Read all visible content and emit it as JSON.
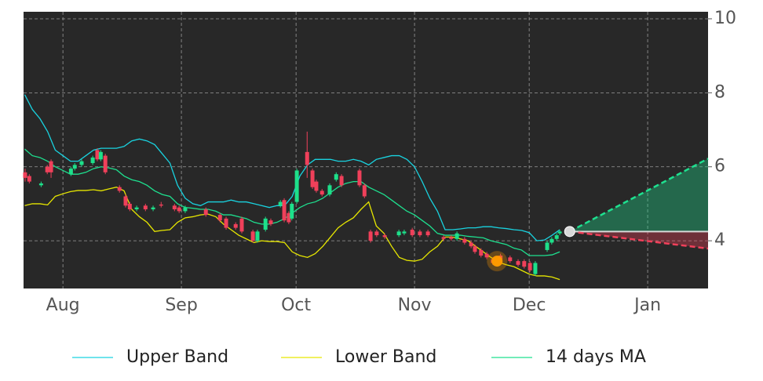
{
  "chart_data": {
    "type": "candlestick",
    "xlim": [
      -10.3,
      168.8
    ],
    "ylim": [
      2.71,
      10.19
    ],
    "xticks": [
      {
        "value": 0,
        "label": "Aug"
      },
      {
        "value": 31,
        "label": "Sep"
      },
      {
        "value": 61,
        "label": "Oct"
      },
      {
        "value": 92,
        "label": "Nov"
      },
      {
        "value": 122,
        "label": "Dec"
      },
      {
        "value": 153,
        "label": "Jan"
      }
    ],
    "yticks": [
      4,
      6,
      8,
      10
    ],
    "grid": true,
    "x": [
      -10,
      -8,
      -6,
      -4,
      -2,
      0,
      2,
      4,
      6,
      8,
      10,
      12,
      14,
      16,
      18,
      20,
      22,
      24,
      26,
      28,
      30,
      32,
      34,
      36,
      38,
      40,
      42,
      44,
      46,
      48,
      50,
      52,
      54,
      56,
      58,
      60,
      62,
      64,
      66,
      68,
      70,
      72,
      74,
      76,
      78,
      80,
      82,
      84,
      86,
      88,
      90,
      92,
      94,
      96,
      98,
      100,
      102,
      104,
      106,
      108,
      110,
      112,
      114,
      116,
      118,
      120,
      122,
      124,
      126,
      128,
      130
    ],
    "series": [
      {
        "name": "Upper Band",
        "color": "#19d3e0",
        "values": [
          7.95,
          7.55,
          7.3,
          6.95,
          6.45,
          6.3,
          6.15,
          6.15,
          6.3,
          6.45,
          6.5,
          6.5,
          6.5,
          6.55,
          6.7,
          6.75,
          6.7,
          6.6,
          6.35,
          6.1,
          5.5,
          5.15,
          5.0,
          4.95,
          5.05,
          5.05,
          5.05,
          5.1,
          5.05,
          5.05,
          5.0,
          4.95,
          4.9,
          4.95,
          4.95,
          5.2,
          5.75,
          6.05,
          6.2,
          6.2,
          6.2,
          6.15,
          6.15,
          6.2,
          6.15,
          6.05,
          6.2,
          6.25,
          6.3,
          6.3,
          6.2,
          6.0,
          5.6,
          5.15,
          4.8,
          4.3,
          4.3,
          4.32,
          4.35,
          4.35,
          4.38,
          4.38,
          4.35,
          4.33,
          4.3,
          4.28,
          4.22,
          4.0,
          4.02,
          4.15,
          4.3
        ]
      },
      {
        "name": "Lower Band",
        "color": "#e6e600",
        "values": [
          4.95,
          5.0,
          5.0,
          4.97,
          5.2,
          5.27,
          5.33,
          5.36,
          5.36,
          5.38,
          5.35,
          5.4,
          5.45,
          5.35,
          4.85,
          4.65,
          4.5,
          4.25,
          4.28,
          4.3,
          4.5,
          4.62,
          4.65,
          4.7,
          4.72,
          4.65,
          4.45,
          4.3,
          4.15,
          4.05,
          3.95,
          4.0,
          3.98,
          3.98,
          3.95,
          3.7,
          3.6,
          3.55,
          3.65,
          3.85,
          4.1,
          4.35,
          4.5,
          4.62,
          4.85,
          5.05,
          4.4,
          4.2,
          3.85,
          3.55,
          3.47,
          3.45,
          3.5,
          3.7,
          3.85,
          4.1,
          4.1,
          4.05,
          4.0,
          3.85,
          3.7,
          3.55,
          3.42,
          3.35,
          3.3,
          3.2,
          3.1,
          3.05,
          3.05,
          3.02,
          2.95
        ]
      },
      {
        "name": "14 days MA",
        "color": "#1ee08f",
        "values": [
          6.48,
          6.3,
          6.25,
          6.15,
          6.0,
          5.9,
          5.8,
          5.8,
          5.85,
          5.95,
          6.0,
          5.97,
          5.92,
          5.75,
          5.65,
          5.6,
          5.5,
          5.35,
          5.25,
          5.2,
          5.0,
          4.9,
          4.88,
          4.85,
          4.85,
          4.8,
          4.7,
          4.7,
          4.65,
          4.6,
          4.5,
          4.45,
          4.45,
          4.5,
          4.6,
          4.75,
          4.9,
          5.0,
          5.05,
          5.15,
          5.3,
          5.45,
          5.55,
          5.6,
          5.6,
          5.45,
          5.35,
          5.25,
          5.1,
          4.95,
          4.8,
          4.7,
          4.55,
          4.4,
          4.2,
          4.15,
          4.15,
          4.15,
          4.12,
          4.1,
          4.08,
          4.0,
          3.95,
          3.9,
          3.8,
          3.75,
          3.6,
          3.6,
          3.6,
          3.62,
          3.7
        ]
      }
    ],
    "candles": {
      "up_color": "#1de08a",
      "down_color": "#f0405a",
      "x": [
        -9.9,
        -8.8,
        -5.7,
        -4.1,
        -3.1,
        2.1,
        3.1,
        4.9,
        7.8,
        9.0,
        9.9,
        11.1,
        14.8,
        16.4,
        17.5,
        19.3,
        21.6,
        23.6,
        25.7,
        29.2,
        30.4,
        32.0,
        37.4,
        41.1,
        42.7,
        45.2,
        46.8,
        49.7,
        50.9,
        53.0,
        54.4,
        56.9,
        57.9,
        59.1,
        59.9,
        61.2,
        63.9,
        65.3,
        66.3,
        67.8,
        69.8,
        71.5,
        72.9,
        77.6,
        78.9,
        80.5,
        82.1,
        84.2,
        87.9,
        89.3,
        91.4,
        93.4,
        95.5,
        99.6,
        101.6,
        103.1,
        105.1,
        106.8,
        107.8,
        109.4,
        110.9,
        112.5,
        114.5,
        117.0,
        119.1,
        120.7,
        122.2,
        123.6,
        126.7,
        127.9,
        129.2,
        130.0
      ],
      "open": [
        5.85,
        5.75,
        5.5,
        6.0,
        6.15,
        5.8,
        5.95,
        6.05,
        6.1,
        6.45,
        6.2,
        6.3,
        5.45,
        5.2,
        5.0,
        4.85,
        4.95,
        4.85,
        4.98,
        4.95,
        4.9,
        4.8,
        4.85,
        4.7,
        4.6,
        4.45,
        4.6,
        4.25,
        4.0,
        4.3,
        4.55,
        4.95,
        5.1,
        4.75,
        4.6,
        5.05,
        6.4,
        5.9,
        5.6,
        5.35,
        5.25,
        5.65,
        5.75,
        5.9,
        5.5,
        4.25,
        4.25,
        4.15,
        4.15,
        4.2,
        4.3,
        4.25,
        4.25,
        4.1,
        4.1,
        4.05,
        4.05,
        3.95,
        3.85,
        3.75,
        3.65,
        3.5,
        3.6,
        3.55,
        3.45,
        3.45,
        3.4,
        3.1,
        3.75,
        3.95,
        4.05,
        4.2
      ],
      "high": [
        5.95,
        5.8,
        5.6,
        6.05,
        6.2,
        6.0,
        6.1,
        6.2,
        6.3,
        6.5,
        6.45,
        6.35,
        5.5,
        5.25,
        5.05,
        4.95,
        5.0,
        4.95,
        5.05,
        5.0,
        4.95,
        4.95,
        4.9,
        4.75,
        4.65,
        4.5,
        4.65,
        4.3,
        4.3,
        4.65,
        4.6,
        5.1,
        5.15,
        4.8,
        5.05,
        5.95,
        6.95,
        5.95,
        5.65,
        5.4,
        5.55,
        5.85,
        5.8,
        5.95,
        5.55,
        4.3,
        4.3,
        4.2,
        4.3,
        4.3,
        4.35,
        4.3,
        4.3,
        4.15,
        4.15,
        4.25,
        4.1,
        4.0,
        3.9,
        3.8,
        3.7,
        3.55,
        3.65,
        3.6,
        3.5,
        3.5,
        3.45,
        3.45,
        4.0,
        4.1,
        4.2,
        4.3
      ],
      "low": [
        5.6,
        5.55,
        5.45,
        5.8,
        5.7,
        5.75,
        5.9,
        6.0,
        6.05,
        6.15,
        6.15,
        5.8,
        5.3,
        4.9,
        4.8,
        4.8,
        4.8,
        4.8,
        4.9,
        4.8,
        4.75,
        4.75,
        4.65,
        4.5,
        4.3,
        4.3,
        4.2,
        3.95,
        3.95,
        4.25,
        4.4,
        4.9,
        4.5,
        4.45,
        4.55,
        5.0,
        5.7,
        5.4,
        5.3,
        5.2,
        5.2,
        5.6,
        5.45,
        5.45,
        5.15,
        3.95,
        4.1,
        4.05,
        4.1,
        4.15,
        4.1,
        4.1,
        4.1,
        4.0,
        4.0,
        4.0,
        3.9,
        3.8,
        3.65,
        3.55,
        3.5,
        3.35,
        3.45,
        3.4,
        3.3,
        3.25,
        3.15,
        3.05,
        3.7,
        3.9,
        4.0,
        4.15
      ],
      "close": [
        5.7,
        5.6,
        5.55,
        5.85,
        5.85,
        5.95,
        6.05,
        6.15,
        6.25,
        6.2,
        6.4,
        5.85,
        5.35,
        4.95,
        4.85,
        4.9,
        4.85,
        4.9,
        4.95,
        4.85,
        4.8,
        4.9,
        4.7,
        4.55,
        4.35,
        4.35,
        4.25,
        4.0,
        4.25,
        4.6,
        4.45,
        5.05,
        4.55,
        4.5,
        5.0,
        5.9,
        6.05,
        5.45,
        5.35,
        5.25,
        5.5,
        5.8,
        5.5,
        5.5,
        5.2,
        4.0,
        4.15,
        4.1,
        4.25,
        4.25,
        4.15,
        4.15,
        4.15,
        4.05,
        4.05,
        4.2,
        3.95,
        3.85,
        3.7,
        3.6,
        3.55,
        3.4,
        3.5,
        3.45,
        3.35,
        3.3,
        3.2,
        3.4,
        3.95,
        4.05,
        4.15,
        4.25
      ]
    },
    "signal": {
      "x": 113.6,
      "value": 3.45,
      "color": "#ff9900"
    },
    "last_price": {
      "x": 132.6,
      "value": 4.25,
      "color": "#d8d8d8"
    },
    "forecast": {
      "x_end": 168.8,
      "upper_end": 6.22,
      "lower_end": 3.79,
      "upper_color": "#1ee08f",
      "lower_color": "#f0405a"
    }
  }
}
